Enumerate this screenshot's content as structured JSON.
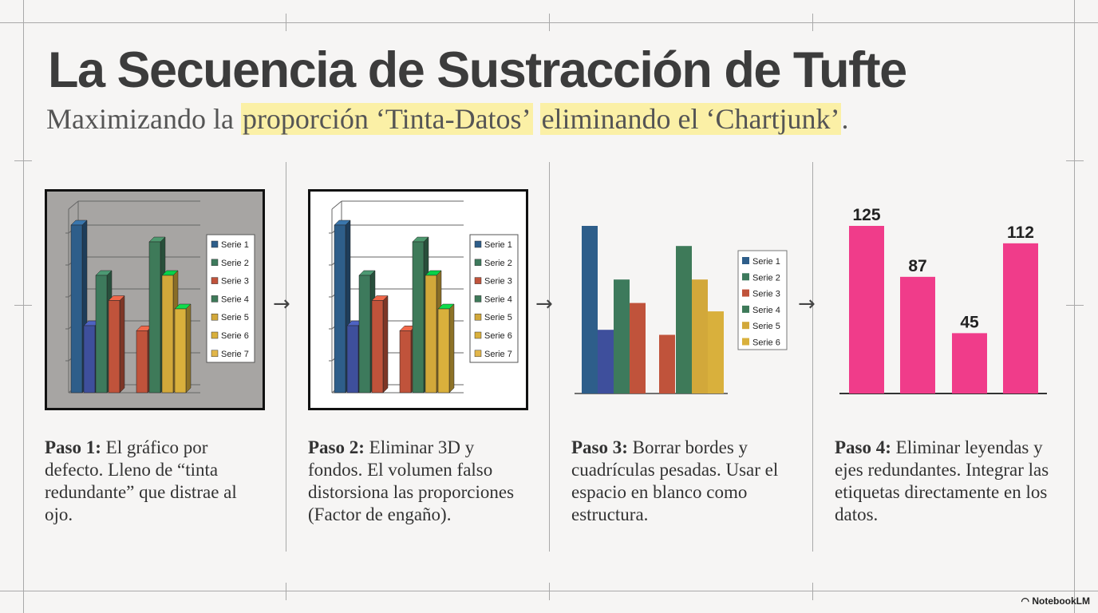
{
  "title": "La Secuencia de Sustracción de Tufte",
  "subtitle": {
    "prefix": "Maximizando la ",
    "highlight1": "proporción ‘Tinta-Datos’",
    "middle": " ",
    "highlight2": "eliminando el ‘Chartjunk’",
    "suffix": "."
  },
  "steps": [
    {
      "label": "Paso 1:",
      "text": " El gráfico por defecto. Lleno de “tinta redundante” que distrae al ojo."
    },
    {
      "label": "Paso 2:",
      "text": " Eliminar 3D y fondos. El volumen falso distorsiona las proporciones (Factor de engaño)."
    },
    {
      "label": "Paso 3:",
      "text": " Borrar bordes y cuadrículas pesadas. Usar el espacio en blanco como estructura."
    },
    {
      "label": "Paso 4:",
      "text": " Eliminar leyendas y ejes redundantes. Integrar las etiquetas directamente en los datos."
    }
  ],
  "arrow_glyph": "→",
  "logo": "NotebookLM",
  "colors": {
    "serie1": "#2e5e8a",
    "serie2": "#3d7a5c",
    "serie3": "#c0533b",
    "serie4": "#3e7a59",
    "serie5": "#d2a83a",
    "serie6": "#d9b03c",
    "serie7": "#e2b64a",
    "serie1b": "#3e4f9c",
    "pink": "#f03c8a",
    "highlight": "#fbf0a6"
  },
  "chart_data": [
    {
      "type": "bar",
      "style": "3d-with-background",
      "series": [
        {
          "name": "Serie 1",
          "values": [
            100
          ]
        },
        {
          "name": "Serie 2",
          "values": [
            70
          ]
        },
        {
          "name": "Serie 3",
          "values": [
            55
          ]
        },
        {
          "name": "Serie 4",
          "values": [
            90
          ]
        },
        {
          "name": "Serie 5",
          "values": [
            70
          ]
        },
        {
          "name": "Serie 6",
          "values": [
            50
          ]
        },
        {
          "name": "Serie 7",
          "values": []
        }
      ],
      "bars": [
        {
          "series": "Serie 1",
          "value": 100
        },
        {
          "series": "Serie 1",
          "value": 40
        },
        {
          "series": "Serie 2",
          "value": 70
        },
        {
          "series": "Serie 3",
          "value": 55
        },
        {
          "series": "Serie 3",
          "value": 37
        },
        {
          "series": "Serie 4",
          "value": 90
        },
        {
          "series": "Serie 5",
          "value": 70
        },
        {
          "series": "Serie 6",
          "value": 50
        }
      ],
      "legend": "right",
      "grid": true
    },
    {
      "type": "bar",
      "style": "3d-white-background",
      "series": [
        {
          "name": "Serie 1"
        },
        {
          "name": "Serie 2"
        },
        {
          "name": "Serie 3"
        },
        {
          "name": "Serie 4"
        },
        {
          "name": "Serie 5"
        },
        {
          "name": "Serie 6"
        },
        {
          "name": "Serie 7"
        }
      ],
      "bars": [
        {
          "series": "Serie 1",
          "value": 100
        },
        {
          "series": "Serie 1",
          "value": 40
        },
        {
          "series": "Serie 2",
          "value": 70
        },
        {
          "series": "Serie 3",
          "value": 55
        },
        {
          "series": "Serie 3",
          "value": 37
        },
        {
          "series": "Serie 4",
          "value": 90
        },
        {
          "series": "Serie 5",
          "value": 70
        },
        {
          "series": "Serie 6",
          "value": 50
        }
      ],
      "legend": "right",
      "grid": true
    },
    {
      "type": "bar",
      "style": "flat-no-grid",
      "series": [
        {
          "name": "Serie 1"
        },
        {
          "name": "Serie 2"
        },
        {
          "name": "Serie 3"
        },
        {
          "name": "Serie 4"
        },
        {
          "name": "Serie 5"
        },
        {
          "name": "Serie 6"
        }
      ],
      "bars": [
        {
          "series": "Serie 1",
          "value": 100
        },
        {
          "series": "Serie 1",
          "value": 38
        },
        {
          "series": "Serie 2",
          "value": 68
        },
        {
          "series": "Serie 3",
          "value": 54
        },
        {
          "series": "Serie 3",
          "value": 35
        },
        {
          "series": "Serie 4",
          "value": 88
        },
        {
          "series": "Serie 5",
          "value": 68
        },
        {
          "series": "Serie 6",
          "value": 49
        }
      ],
      "legend": "right",
      "grid": false
    },
    {
      "type": "bar",
      "style": "direct-labels",
      "values": [
        125,
        87,
        45,
        112
      ],
      "data_labels": [
        "125",
        "87",
        "45",
        "112"
      ],
      "ylim": [
        0,
        130
      ],
      "legend": "none",
      "grid": false
    }
  ]
}
